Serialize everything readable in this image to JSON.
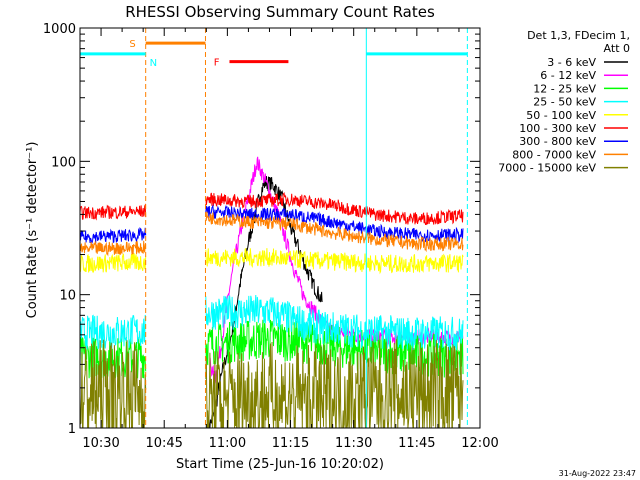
{
  "chart_data": {
    "type": "line",
    "title": "RHESSI Observing Summary Count Rates",
    "xlabel": "Start Time (25-Jun-16 10:20:02)",
    "ylabel": "Count Rate (s⁻¹ detector⁻¹)",
    "xrange_minutes_after_1020": [
      5,
      100
    ],
    "x_ticks": [
      {
        "label": "10:30",
        "t": 10
      },
      {
        "label": "10:45",
        "t": 25
      },
      {
        "label": "11:00",
        "t": 40
      },
      {
        "label": "11:15",
        "t": 55
      },
      {
        "label": "11:30",
        "t": 70
      },
      {
        "label": "11:45",
        "t": 85
      },
      {
        "label": "12:00",
        "t": 100
      }
    ],
    "y_scale": "log",
    "ylim": [
      1,
      1000
    ],
    "y_ticks": [
      {
        "label": "1",
        "v": 1
      },
      {
        "label": "10",
        "v": 10
      },
      {
        "label": "100",
        "v": 100
      },
      {
        "label": "1000",
        "v": 1000
      }
    ],
    "legend": {
      "placement": "right",
      "header": [
        "Det 1,3, FDecim 1,",
        "Att 0"
      ]
    },
    "timestamp": "31-Aug-2022 23:47",
    "data_gaps": [
      [
        20.6,
        34.8
      ],
      [
        97,
        100
      ]
    ],
    "series": [
      {
        "name": "3 - 6 keV",
        "color": "#000000",
        "points": [
          [
            35.5,
            1
          ],
          [
            37,
            1.3
          ],
          [
            38,
            2
          ],
          [
            39,
            2.8
          ],
          [
            41,
            5
          ],
          [
            43,
            12
          ],
          [
            45,
            25
          ],
          [
            47,
            45
          ],
          [
            48,
            60
          ],
          [
            49,
            70
          ],
          [
            51,
            66
          ],
          [
            53,
            52
          ],
          [
            55,
            32
          ],
          [
            57,
            22
          ],
          [
            59,
            15
          ],
          [
            61,
            11
          ],
          [
            62.5,
            9
          ]
        ]
      },
      {
        "name": "6 - 12 keV",
        "color": "#ff00ff",
        "points": [
          [
            35.8,
            3.2
          ],
          [
            37,
            2.3
          ],
          [
            38.5,
            4
          ],
          [
            40,
            9
          ],
          [
            42,
            20
          ],
          [
            44,
            40
          ],
          [
            46,
            72
          ],
          [
            47,
            100
          ],
          [
            48,
            85
          ],
          [
            50,
            60
          ],
          [
            52,
            40
          ],
          [
            54,
            25
          ],
          [
            56,
            15
          ],
          [
            58,
            10
          ],
          [
            60,
            8
          ],
          [
            62,
            6.5
          ],
          [
            64,
            5.5
          ],
          [
            70,
            5
          ],
          [
            80,
            4.8
          ],
          [
            90,
            4.8
          ],
          [
            96,
            4.8
          ]
        ]
      },
      {
        "name": "12 - 25 keV",
        "color": "#00ff00",
        "points": [
          [
            5,
            3.4
          ],
          [
            20,
            3.4
          ],
          [
            35,
            4.2
          ],
          [
            50,
            4.7
          ],
          [
            60,
            4.3
          ],
          [
            70,
            3.9
          ],
          [
            80,
            3.6
          ],
          [
            96,
            3.4
          ]
        ]
      },
      {
        "name": "25 - 50 keV",
        "color": "#00ffff",
        "points": [
          [
            5,
            5.2
          ],
          [
            20,
            5.3
          ],
          [
            35,
            7.3
          ],
          [
            50,
            7.5
          ],
          [
            60,
            5.8
          ],
          [
            70,
            5.4
          ],
          [
            80,
            5.2
          ],
          [
            96,
            5.1
          ]
        ]
      },
      {
        "name": "50 - 100 keV",
        "color": "#ffff00",
        "points": [
          [
            5,
            17
          ],
          [
            20,
            17.5
          ],
          [
            35,
            19
          ],
          [
            50,
            19
          ],
          [
            60,
            18
          ],
          [
            70,
            17.5
          ],
          [
            80,
            17
          ],
          [
            96,
            17.3
          ]
        ]
      },
      {
        "name": "100 - 300 keV",
        "color": "#ff0000",
        "points": [
          [
            5,
            41
          ],
          [
            20,
            42
          ],
          [
            35,
            52
          ],
          [
            45,
            50
          ],
          [
            55,
            52
          ],
          [
            65,
            47
          ],
          [
            75,
            40
          ],
          [
            85,
            37
          ],
          [
            96,
            39
          ]
        ]
      },
      {
        "name": "300 - 800 keV",
        "color": "#0000ff",
        "points": [
          [
            5,
            27
          ],
          [
            20,
            28
          ],
          [
            35,
            42
          ],
          [
            45,
            40
          ],
          [
            55,
            40
          ],
          [
            65,
            35
          ],
          [
            75,
            30
          ],
          [
            85,
            28
          ],
          [
            96,
            28
          ]
        ]
      },
      {
        "name": "800 - 7000 keV",
        "color": "#ff8000",
        "points": [
          [
            5,
            22
          ],
          [
            20,
            22.5
          ],
          [
            35,
            38
          ],
          [
            45,
            35
          ],
          [
            55,
            34
          ],
          [
            65,
            29
          ],
          [
            75,
            26
          ],
          [
            85,
            24
          ],
          [
            96,
            24
          ]
        ]
      },
      {
        "name": "7000 - 15000 keV",
        "color": "#808000",
        "points": [
          [
            5,
            1.8
          ],
          [
            20,
            1.8
          ],
          [
            35,
            1.5
          ],
          [
            50,
            1.7
          ],
          [
            60,
            1.6
          ],
          [
            70,
            1.7
          ],
          [
            80,
            1.8
          ],
          [
            96,
            1.8
          ]
        ]
      }
    ],
    "annotations": [
      {
        "label": "S",
        "color": "#ff8000",
        "t_start": 20.6,
        "t_end": 34.8,
        "v": 770,
        "style": "bar"
      },
      {
        "label": "N",
        "color": "#00ffff",
        "t_start": 20.6,
        "v": 640,
        "style": "label"
      },
      {
        "label": "",
        "color": "#00ffff",
        "t_start": 5,
        "t_end": 20.6,
        "v": 640,
        "style": "bar"
      },
      {
        "label": "",
        "color": "#00ffff",
        "t_start": 73,
        "t_end": 97,
        "v": 640,
        "style": "bar"
      },
      {
        "label": "F",
        "color": "#ff0000",
        "t_start": 40.5,
        "t_end": 54.5,
        "v": 560,
        "style": "bar"
      }
    ],
    "vertical_markers": [
      {
        "t": 20.6,
        "color": "#ff8000",
        "style": "dashed"
      },
      {
        "t": 34.8,
        "color": "#ff8000",
        "style": "dashed"
      },
      {
        "t": 73,
        "color": "#00ffff",
        "style": "solid"
      },
      {
        "t": 97,
        "color": "#00ffff",
        "style": "dashed"
      },
      {
        "t": 5,
        "color": "#00ffff",
        "style": "solid"
      }
    ]
  }
}
